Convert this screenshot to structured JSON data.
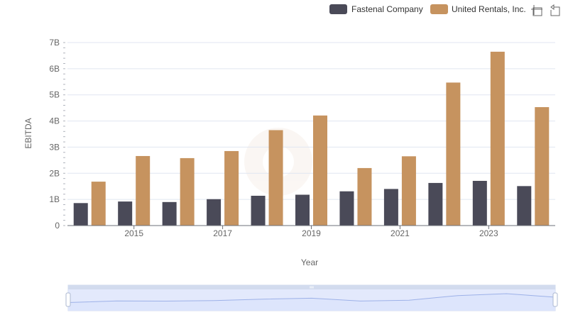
{
  "toolbox": {
    "zoom_icon": "zoom-icon",
    "restore_icon": "restore-icon"
  },
  "colors": {
    "fastenal": "#4a4a58",
    "united": "#c6935f",
    "grid": "#e0e6f1",
    "axis": "#6e7079",
    "zoom_fill": "#dbe4fb",
    "zoom_line": "#9db1e8"
  },
  "chart_data": {
    "type": "bar",
    "x": [
      2014,
      2015,
      2016,
      2017,
      2018,
      2019,
      2020,
      2021,
      2022,
      2023,
      2024
    ],
    "x_tick_labels": [
      "2015",
      "2017",
      "2019",
      "2021",
      "2023"
    ],
    "y_tick_labels": [
      "0",
      "1B",
      "2B",
      "3B",
      "4B",
      "5B",
      "6B",
      "7B"
    ],
    "xlabel": "Year",
    "ylabel": "EBITDA",
    "ylim": [
      0,
      7000000000
    ],
    "grid": true,
    "legend_position": "top-right",
    "series": [
      {
        "name": "Fastenal Company",
        "values": [
          860000000,
          920000000,
          900000000,
          1010000000,
          1140000000,
          1180000000,
          1310000000,
          1400000000,
          1630000000,
          1710000000,
          1510000000
        ]
      },
      {
        "name": "United Rentals, Inc.",
        "values": [
          1680000000,
          2660000000,
          2580000000,
          2850000000,
          3650000000,
          4210000000,
          2200000000,
          2650000000,
          5470000000,
          6650000000,
          4530000000
        ]
      }
    ]
  }
}
